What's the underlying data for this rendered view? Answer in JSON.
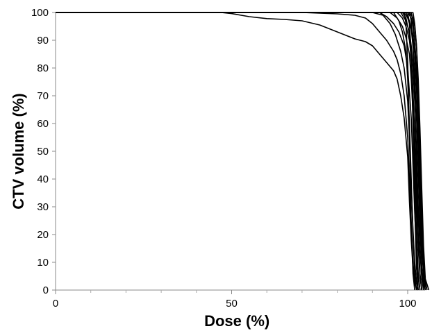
{
  "chart_data": {
    "type": "line",
    "title": "",
    "xlabel": "Dose (%)",
    "ylabel": "CTV volume (%)",
    "xlim": [
      0,
      105
    ],
    "ylim": [
      0,
      100
    ],
    "x_ticks": [
      0,
      50,
      100
    ],
    "x_minor_ticks": [
      10,
      20,
      30,
      40,
      60,
      70,
      80,
      90
    ],
    "y_ticks": [
      0,
      10,
      20,
      30,
      40,
      50,
      60,
      70,
      80,
      90,
      100
    ],
    "grid": false,
    "legend": "none",
    "line_color": "#000000",
    "series": [
      {
        "x": [
          0,
          47,
          50,
          55,
          60,
          65,
          70,
          75,
          80,
          85,
          88,
          90,
          92,
          94,
          96,
          97,
          98,
          99,
          100,
          100.5,
          101,
          101.5,
          102,
          103
        ],
        "y": [
          100,
          100,
          99.6,
          98.5,
          97.8,
          97.5,
          97,
          95.5,
          93,
          90.5,
          89.5,
          88,
          85,
          82,
          79,
          76,
          70,
          62,
          48,
          32,
          18,
          8,
          2,
          0
        ]
      },
      {
        "x": [
          0,
          70,
          80,
          85,
          88,
          90,
          92,
          94,
          95,
          96,
          97,
          98,
          99,
          100,
          100.5,
          101,
          101.5,
          102,
          102.5
        ],
        "y": [
          100,
          100,
          99.5,
          99,
          98,
          96,
          93,
          90,
          88,
          86,
          83,
          78,
          70,
          55,
          40,
          22,
          10,
          3,
          0
        ]
      },
      {
        "x": [
          0,
          90,
          93,
          95,
          96.5,
          98,
          99,
          100,
          100.5,
          101,
          101.5,
          102,
          102.5,
          103
        ],
        "y": [
          100,
          100,
          99,
          96,
          92,
          86,
          80,
          68,
          55,
          38,
          22,
          10,
          3,
          0
        ]
      },
      {
        "x": [
          0,
          92,
          94,
          96,
          97.5,
          99,
          100,
          101,
          101.5,
          102,
          102.5,
          103,
          103.5
        ],
        "y": [
          100,
          100,
          98.5,
          96,
          93,
          88,
          80,
          62,
          45,
          28,
          14,
          4,
          0
        ]
      },
      {
        "x": [
          0,
          95,
          97,
          98.5,
          99.5,
          100.5,
          101,
          101.5,
          102,
          102.5,
          103,
          103.5,
          104
        ],
        "y": [
          100,
          100,
          98,
          95,
          91,
          85,
          76,
          64,
          48,
          30,
          15,
          5,
          0
        ]
      },
      {
        "x": [
          0,
          97,
          98.5,
          99.5,
          100.5,
          101,
          101.5,
          102,
          102.5,
          103,
          103.5,
          104
        ],
        "y": [
          100,
          100,
          98,
          95,
          90,
          84,
          72,
          55,
          36,
          18,
          6,
          0
        ]
      },
      {
        "x": [
          0,
          98,
          99.5,
          100.5,
          101,
          101.5,
          102,
          102.5,
          103,
          103.5,
          104,
          104.5
        ],
        "y": [
          100,
          100,
          97,
          93,
          88,
          80,
          68,
          50,
          30,
          14,
          4,
          0
        ]
      },
      {
        "x": [
          0,
          99,
          100,
          101,
          101.5,
          102,
          102.5,
          103,
          103.5,
          104,
          104.5,
          105
        ],
        "y": [
          100,
          100,
          98,
          94,
          88,
          78,
          62,
          42,
          22,
          8,
          2,
          0
        ]
      },
      {
        "x": [
          0,
          99.5,
          100.5,
          101.5,
          102,
          102.5,
          103,
          103.5,
          104,
          104.5,
          105
        ],
        "y": [
          100,
          100,
          97,
          92,
          85,
          72,
          55,
          35,
          16,
          5,
          0
        ]
      },
      {
        "x": [
          0,
          100,
          101,
          101.5,
          102,
          102.5,
          103,
          103.5,
          104,
          104.5,
          105.5
        ],
        "y": [
          100,
          100,
          98,
          95,
          90,
          80,
          62,
          40,
          20,
          6,
          0
        ]
      },
      {
        "x": [
          0,
          100.5,
          101.5,
          102,
          102.5,
          103,
          103.5,
          104,
          104.5,
          105,
          106
        ],
        "y": [
          100,
          100,
          98,
          95,
          88,
          76,
          58,
          36,
          16,
          4,
          0
        ]
      },
      {
        "x": [
          0,
          100,
          100.5,
          101,
          101.5,
          102,
          102.5,
          103
        ],
        "y": [
          100,
          100,
          96,
          85,
          60,
          30,
          8,
          0
        ]
      },
      {
        "x": [
          0,
          99,
          99.5,
          100,
          100.5,
          101,
          101.5,
          102
        ],
        "y": [
          100,
          100,
          96,
          82,
          55,
          25,
          6,
          0
        ]
      },
      {
        "x": [
          0,
          100.5,
          101,
          101.5,
          102,
          102.5,
          103,
          103.5,
          104
        ],
        "y": [
          100,
          100,
          97,
          88,
          70,
          45,
          20,
          5,
          0
        ]
      },
      {
        "x": [
          0,
          101,
          101.5,
          102,
          102.5,
          103,
          103.5,
          104,
          104.5
        ],
        "y": [
          100,
          100,
          97,
          90,
          74,
          52,
          28,
          8,
          0
        ]
      },
      {
        "x": [
          0,
          96,
          97.5,
          98.5,
          99.5,
          100,
          100.5,
          101,
          101.5,
          102,
          102.5
        ],
        "y": [
          100,
          100,
          97,
          93,
          86,
          76,
          60,
          40,
          20,
          6,
          0
        ]
      },
      {
        "x": [
          0,
          101.5,
          102,
          102.5,
          103,
          103.5,
          104,
          104.5,
          105,
          105.5
        ],
        "y": [
          100,
          100,
          96,
          88,
          72,
          50,
          26,
          10,
          2,
          0
        ]
      },
      {
        "x": [
          0,
          98.5,
          99.5,
          100.5,
          101,
          101.5,
          102,
          102.5,
          103,
          103.5
        ],
        "y": [
          100,
          100,
          98,
          92,
          82,
          64,
          42,
          20,
          6,
          0
        ]
      }
    ]
  }
}
